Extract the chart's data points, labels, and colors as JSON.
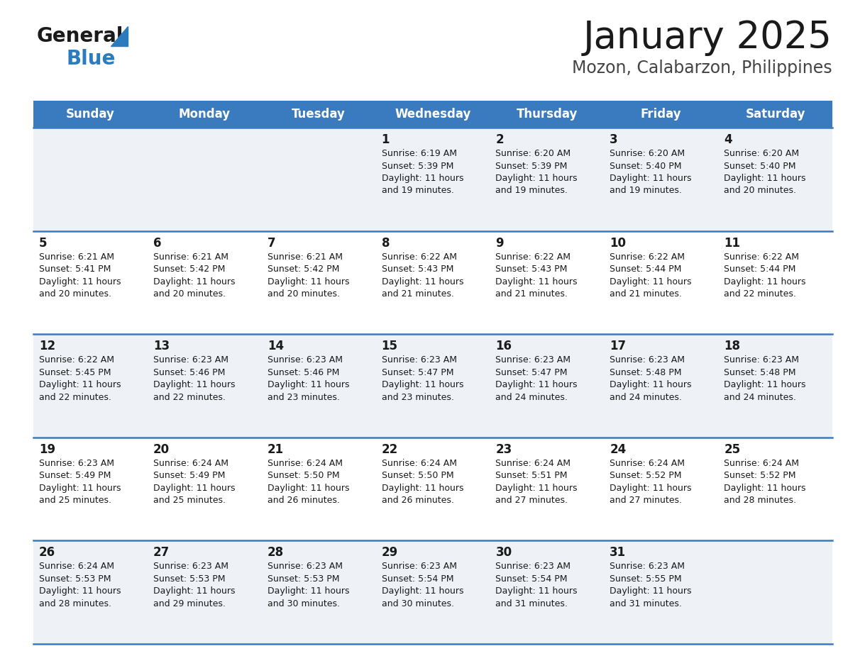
{
  "title": "January 2025",
  "subtitle": "Mozon, Calabarzon, Philippines",
  "header_color": "#3a7abf",
  "header_text_color": "#ffffff",
  "cell_bg_even": "#eef2f7",
  "cell_bg_odd": "#ffffff",
  "border_color": "#3a7abf",
  "days_of_week": [
    "Sunday",
    "Monday",
    "Tuesday",
    "Wednesday",
    "Thursday",
    "Friday",
    "Saturday"
  ],
  "calendar_data": [
    [
      {
        "day": "",
        "sunrise": "",
        "sunset": "",
        "dl1": "",
        "dl2": ""
      },
      {
        "day": "",
        "sunrise": "",
        "sunset": "",
        "dl1": "",
        "dl2": ""
      },
      {
        "day": "",
        "sunrise": "",
        "sunset": "",
        "dl1": "",
        "dl2": ""
      },
      {
        "day": "1",
        "sunrise": "Sunrise: 6:19 AM",
        "sunset": "Sunset: 5:39 PM",
        "dl1": "Daylight: 11 hours",
        "dl2": "and 19 minutes."
      },
      {
        "day": "2",
        "sunrise": "Sunrise: 6:20 AM",
        "sunset": "Sunset: 5:39 PM",
        "dl1": "Daylight: 11 hours",
        "dl2": "and 19 minutes."
      },
      {
        "day": "3",
        "sunrise": "Sunrise: 6:20 AM",
        "sunset": "Sunset: 5:40 PM",
        "dl1": "Daylight: 11 hours",
        "dl2": "and 19 minutes."
      },
      {
        "day": "4",
        "sunrise": "Sunrise: 6:20 AM",
        "sunset": "Sunset: 5:40 PM",
        "dl1": "Daylight: 11 hours",
        "dl2": "and 20 minutes."
      }
    ],
    [
      {
        "day": "5",
        "sunrise": "Sunrise: 6:21 AM",
        "sunset": "Sunset: 5:41 PM",
        "dl1": "Daylight: 11 hours",
        "dl2": "and 20 minutes."
      },
      {
        "day": "6",
        "sunrise": "Sunrise: 6:21 AM",
        "sunset": "Sunset: 5:42 PM",
        "dl1": "Daylight: 11 hours",
        "dl2": "and 20 minutes."
      },
      {
        "day": "7",
        "sunrise": "Sunrise: 6:21 AM",
        "sunset": "Sunset: 5:42 PM",
        "dl1": "Daylight: 11 hours",
        "dl2": "and 20 minutes."
      },
      {
        "day": "8",
        "sunrise": "Sunrise: 6:22 AM",
        "sunset": "Sunset: 5:43 PM",
        "dl1": "Daylight: 11 hours",
        "dl2": "and 21 minutes."
      },
      {
        "day": "9",
        "sunrise": "Sunrise: 6:22 AM",
        "sunset": "Sunset: 5:43 PM",
        "dl1": "Daylight: 11 hours",
        "dl2": "and 21 minutes."
      },
      {
        "day": "10",
        "sunrise": "Sunrise: 6:22 AM",
        "sunset": "Sunset: 5:44 PM",
        "dl1": "Daylight: 11 hours",
        "dl2": "and 21 minutes."
      },
      {
        "day": "11",
        "sunrise": "Sunrise: 6:22 AM",
        "sunset": "Sunset: 5:44 PM",
        "dl1": "Daylight: 11 hours",
        "dl2": "and 22 minutes."
      }
    ],
    [
      {
        "day": "12",
        "sunrise": "Sunrise: 6:22 AM",
        "sunset": "Sunset: 5:45 PM",
        "dl1": "Daylight: 11 hours",
        "dl2": "and 22 minutes."
      },
      {
        "day": "13",
        "sunrise": "Sunrise: 6:23 AM",
        "sunset": "Sunset: 5:46 PM",
        "dl1": "Daylight: 11 hours",
        "dl2": "and 22 minutes."
      },
      {
        "day": "14",
        "sunrise": "Sunrise: 6:23 AM",
        "sunset": "Sunset: 5:46 PM",
        "dl1": "Daylight: 11 hours",
        "dl2": "and 23 minutes."
      },
      {
        "day": "15",
        "sunrise": "Sunrise: 6:23 AM",
        "sunset": "Sunset: 5:47 PM",
        "dl1": "Daylight: 11 hours",
        "dl2": "and 23 minutes."
      },
      {
        "day": "16",
        "sunrise": "Sunrise: 6:23 AM",
        "sunset": "Sunset: 5:47 PM",
        "dl1": "Daylight: 11 hours",
        "dl2": "and 24 minutes."
      },
      {
        "day": "17",
        "sunrise": "Sunrise: 6:23 AM",
        "sunset": "Sunset: 5:48 PM",
        "dl1": "Daylight: 11 hours",
        "dl2": "and 24 minutes."
      },
      {
        "day": "18",
        "sunrise": "Sunrise: 6:23 AM",
        "sunset": "Sunset: 5:48 PM",
        "dl1": "Daylight: 11 hours",
        "dl2": "and 24 minutes."
      }
    ],
    [
      {
        "day": "19",
        "sunrise": "Sunrise: 6:23 AM",
        "sunset": "Sunset: 5:49 PM",
        "dl1": "Daylight: 11 hours",
        "dl2": "and 25 minutes."
      },
      {
        "day": "20",
        "sunrise": "Sunrise: 6:24 AM",
        "sunset": "Sunset: 5:49 PM",
        "dl1": "Daylight: 11 hours",
        "dl2": "and 25 minutes."
      },
      {
        "day": "21",
        "sunrise": "Sunrise: 6:24 AM",
        "sunset": "Sunset: 5:50 PM",
        "dl1": "Daylight: 11 hours",
        "dl2": "and 26 minutes."
      },
      {
        "day": "22",
        "sunrise": "Sunrise: 6:24 AM",
        "sunset": "Sunset: 5:50 PM",
        "dl1": "Daylight: 11 hours",
        "dl2": "and 26 minutes."
      },
      {
        "day": "23",
        "sunrise": "Sunrise: 6:24 AM",
        "sunset": "Sunset: 5:51 PM",
        "dl1": "Daylight: 11 hours",
        "dl2": "and 27 minutes."
      },
      {
        "day": "24",
        "sunrise": "Sunrise: 6:24 AM",
        "sunset": "Sunset: 5:52 PM",
        "dl1": "Daylight: 11 hours",
        "dl2": "and 27 minutes."
      },
      {
        "day": "25",
        "sunrise": "Sunrise: 6:24 AM",
        "sunset": "Sunset: 5:52 PM",
        "dl1": "Daylight: 11 hours",
        "dl2": "and 28 minutes."
      }
    ],
    [
      {
        "day": "26",
        "sunrise": "Sunrise: 6:24 AM",
        "sunset": "Sunset: 5:53 PM",
        "dl1": "Daylight: 11 hours",
        "dl2": "and 28 minutes."
      },
      {
        "day": "27",
        "sunrise": "Sunrise: 6:23 AM",
        "sunset": "Sunset: 5:53 PM",
        "dl1": "Daylight: 11 hours",
        "dl2": "and 29 minutes."
      },
      {
        "day": "28",
        "sunrise": "Sunrise: 6:23 AM",
        "sunset": "Sunset: 5:53 PM",
        "dl1": "Daylight: 11 hours",
        "dl2": "and 30 minutes."
      },
      {
        "day": "29",
        "sunrise": "Sunrise: 6:23 AM",
        "sunset": "Sunset: 5:54 PM",
        "dl1": "Daylight: 11 hours",
        "dl2": "and 30 minutes."
      },
      {
        "day": "30",
        "sunrise": "Sunrise: 6:23 AM",
        "sunset": "Sunset: 5:54 PM",
        "dl1": "Daylight: 11 hours",
        "dl2": "and 31 minutes."
      },
      {
        "day": "31",
        "sunrise": "Sunrise: 6:23 AM",
        "sunset": "Sunset: 5:55 PM",
        "dl1": "Daylight: 11 hours",
        "dl2": "and 31 minutes."
      },
      {
        "day": "",
        "sunrise": "",
        "sunset": "",
        "dl1": "",
        "dl2": ""
      }
    ]
  ],
  "logo_general_color": "#1a1a1a",
  "logo_blue_color": "#2b7bbf",
  "title_fontsize": 38,
  "subtitle_fontsize": 17,
  "day_header_fontsize": 12,
  "day_num_fontsize": 12,
  "cell_text_fontsize": 9
}
